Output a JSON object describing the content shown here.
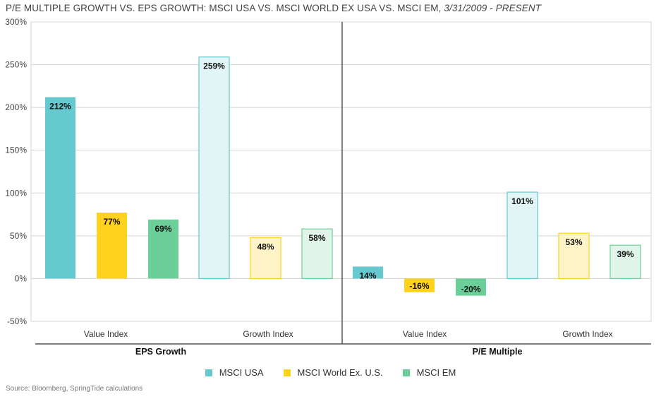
{
  "title": {
    "main": "P/E MULTIPLE GROWTH VS. EPS GROWTH: MSCI USA VS. MSCI WORLD EX USA VS. MSCI EM,",
    "date": "3/31/2009 - PRESENT"
  },
  "source": "Source: Bloomberg, SpringTide calculations",
  "colors": {
    "msci_usa": "#66c9cf",
    "msci_world": "#ffd21f",
    "msci_em": "#6ccf9a",
    "msci_usa_light": "#e2f5f6",
    "msci_world_light": "#fff4c8",
    "msci_em_light": "#e0f4e9"
  },
  "chart_data": {
    "type": "bar",
    "ylim": [
      -50,
      300
    ],
    "yticks": [
      "-50%",
      "0%",
      "50%",
      "100%",
      "150%",
      "200%",
      "250%",
      "300%"
    ],
    "grid": true,
    "legend_position": "bottom",
    "groups": [
      {
        "label": "EPS Growth",
        "categories": [
          {
            "label": "Value Index",
            "values": [
              {
                "series": "MSCI USA",
                "value": 212,
                "label": "212%"
              },
              {
                "series": "MSCI World Ex. U.S.",
                "value": 77,
                "label": "77%"
              },
              {
                "series": "MSCI EM",
                "value": 69,
                "label": "69%"
              }
            ]
          },
          {
            "label": "Growth Index",
            "values": [
              {
                "series": "MSCI USA",
                "value": 259,
                "label": "259%"
              },
              {
                "series": "MSCI World Ex. U.S.",
                "value": 48,
                "label": "48%"
              },
              {
                "series": "MSCI EM",
                "value": 58,
                "label": "58%"
              }
            ]
          }
        ]
      },
      {
        "label": "P/E Multiple",
        "categories": [
          {
            "label": "Value Index",
            "values": [
              {
                "series": "MSCI USA",
                "value": 14,
                "label": "14%"
              },
              {
                "series": "MSCI World Ex. U.S.",
                "value": -16,
                "label": "-16%"
              },
              {
                "series": "MSCI EM",
                "value": -20,
                "label": "-20%"
              }
            ]
          },
          {
            "label": "Growth Index",
            "values": [
              {
                "series": "MSCI USA",
                "value": 101,
                "label": "101%"
              },
              {
                "series": "MSCI World Ex. U.S.",
                "value": 53,
                "label": "53%"
              },
              {
                "series": "MSCI EM",
                "value": 39,
                "label": "39%"
              }
            ]
          }
        ]
      }
    ],
    "legend": [
      {
        "name": "MSCI USA",
        "color": "#66c9cf"
      },
      {
        "name": "MSCI World Ex. U.S.",
        "color": "#ffd21f"
      },
      {
        "name": "MSCI EM",
        "color": "#6ccf9a"
      }
    ]
  }
}
